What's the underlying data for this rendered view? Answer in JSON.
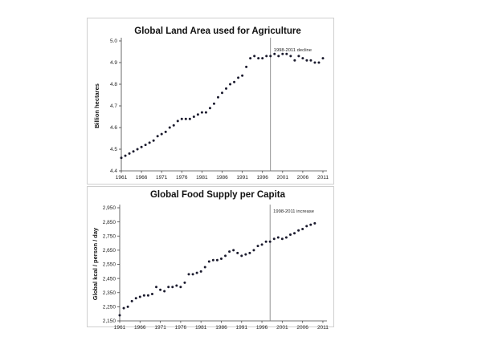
{
  "colors": {
    "point": "#1b1b2e",
    "axis": "#444444",
    "vline": "#777777",
    "border": "#cfcfcf"
  },
  "chart_data": [
    {
      "type": "scatter",
      "title": "Global Land Area used for Agriculture",
      "xlabel": "",
      "ylabel": "Billion hectares",
      "xlim": [
        1961,
        2012
      ],
      "ylim": [
        4.4,
        5.0
      ],
      "xticks": [
        1961,
        1966,
        1971,
        1976,
        1981,
        1986,
        1991,
        1996,
        2001,
        2006,
        2011
      ],
      "yticks": [
        "4.4",
        "4.5",
        "4.6",
        "4.7",
        "4.8",
        "4.9",
        "5.0"
      ],
      "vline_x": 1998,
      "annotation": "1998-2011 decline",
      "x": [
        1961,
        1962,
        1963,
        1964,
        1965,
        1966,
        1967,
        1968,
        1969,
        1970,
        1971,
        1972,
        1973,
        1974,
        1975,
        1976,
        1977,
        1978,
        1979,
        1980,
        1981,
        1982,
        1983,
        1984,
        1985,
        1986,
        1987,
        1988,
        1989,
        1990,
        1991,
        1992,
        1993,
        1994,
        1995,
        1996,
        1997,
        1998,
        1999,
        2000,
        2001,
        2002,
        2003,
        2004,
        2005,
        2006,
        2007,
        2008,
        2009,
        2010,
        2011
      ],
      "y": [
        4.46,
        4.47,
        4.48,
        4.49,
        4.5,
        4.51,
        4.52,
        4.53,
        4.54,
        4.56,
        4.57,
        4.58,
        4.6,
        4.61,
        4.63,
        4.64,
        4.64,
        4.64,
        4.65,
        4.66,
        4.67,
        4.67,
        4.69,
        4.71,
        4.74,
        4.76,
        4.78,
        4.8,
        4.81,
        4.83,
        4.84,
        4.88,
        4.92,
        4.93,
        4.92,
        4.92,
        4.93,
        4.93,
        4.94,
        4.93,
        4.94,
        4.94,
        4.93,
        4.91,
        4.93,
        4.92,
        4.91,
        4.91,
        4.9,
        4.9,
        4.92
      ]
    },
    {
      "type": "scatter",
      "title": "Global Food Supply per Capita",
      "xlabel": "",
      "ylabel": "Global kcal / person / day",
      "xlim": [
        1961,
        2012
      ],
      "ylim": [
        2150,
        2950
      ],
      "xticks": [
        1961,
        1966,
        1971,
        1976,
        1981,
        1986,
        1991,
        1996,
        2001,
        2006,
        2011
      ],
      "yticks": [
        "2,150",
        "2,250",
        "2,350",
        "2,450",
        "2,550",
        "2,650",
        "2,750",
        "2,850",
        "2,950"
      ],
      "vline_x": 1998,
      "annotation": "1998-2011 increase",
      "x": [
        1961,
        1962,
        1963,
        1964,
        1965,
        1966,
        1967,
        1968,
        1969,
        1970,
        1971,
        1972,
        1973,
        1974,
        1975,
        1976,
        1977,
        1978,
        1979,
        1980,
        1981,
        1982,
        1983,
        1984,
        1985,
        1986,
        1987,
        1988,
        1989,
        1990,
        1991,
        1992,
        1993,
        1994,
        1995,
        1996,
        1997,
        1998,
        1999,
        2000,
        2001,
        2002,
        2003,
        2004,
        2005,
        2006,
        2007,
        2008,
        2009
      ],
      "y": [
        2190,
        2240,
        2250,
        2290,
        2310,
        2320,
        2330,
        2330,
        2340,
        2390,
        2370,
        2360,
        2390,
        2390,
        2400,
        2390,
        2420,
        2480,
        2480,
        2490,
        2500,
        2530,
        2570,
        2580,
        2580,
        2590,
        2610,
        2640,
        2650,
        2630,
        2610,
        2620,
        2630,
        2650,
        2680,
        2690,
        2710,
        2710,
        2730,
        2740,
        2730,
        2740,
        2760,
        2770,
        2790,
        2800,
        2820,
        2830,
        2840
      ]
    }
  ]
}
